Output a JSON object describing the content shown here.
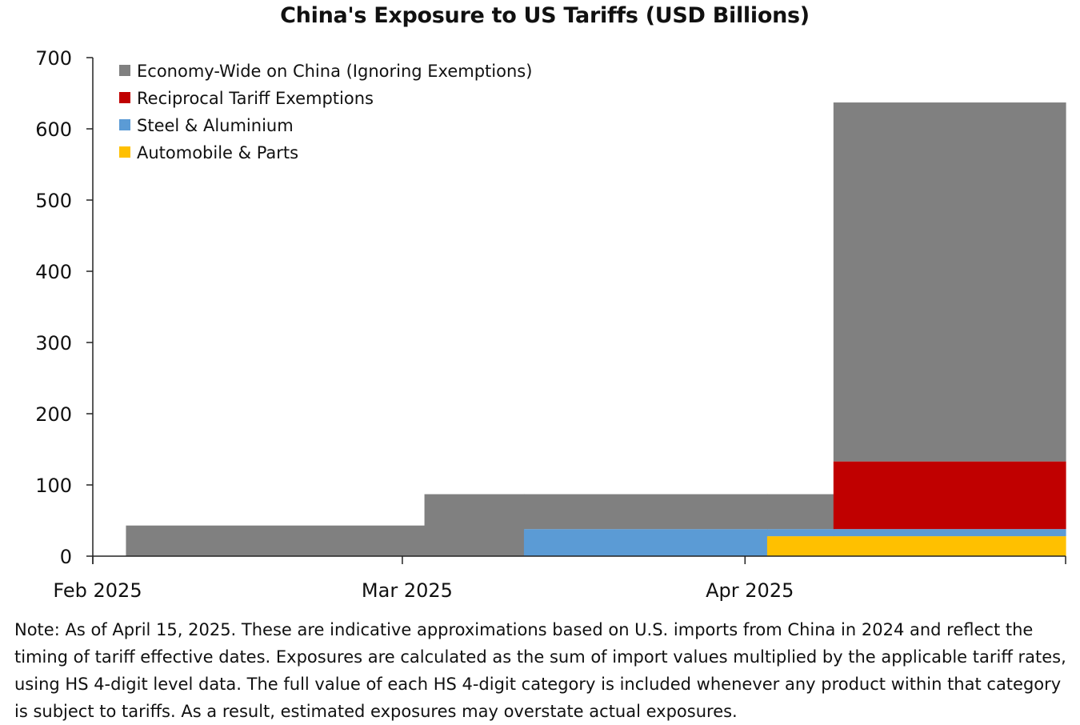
{
  "chart_data": {
    "type": "area",
    "title": "China's Exposure to US Tariffs (USD Billions)",
    "xlabel": "",
    "ylabel": "",
    "ylim": [
      0,
      700
    ],
    "yticks": [
      0,
      100,
      200,
      300,
      400,
      500,
      600,
      700
    ],
    "xlim": [
      "2025-02-01",
      "2025-04-30"
    ],
    "xticks": [
      {
        "date": "2025-02-01",
        "label": "Feb 2025"
      },
      {
        "date": "2025-03-01",
        "label": "Mar 2025"
      },
      {
        "date": "2025-04-01",
        "label": "Apr 2025"
      }
    ],
    "stacked": true,
    "grid": false,
    "legend_position": "top-left",
    "series": [
      {
        "name": "Automobile & Parts",
        "color": "#FFC000",
        "segments": [
          {
            "start": "2025-04-03",
            "end": "2025-04-30",
            "value": 28
          }
        ]
      },
      {
        "name": "Steel & Aluminium",
        "color": "#5B9BD5",
        "segments": [
          {
            "start": "2025-03-12",
            "end": "2025-04-03",
            "value": 38
          },
          {
            "start": "2025-04-03",
            "end": "2025-04-30",
            "value": 10
          }
        ]
      },
      {
        "name": "Reciprocal Tariff Exemptions",
        "color": "#C00000",
        "segments": [
          {
            "start": "2025-04-09",
            "end": "2025-04-30",
            "value": 95
          }
        ]
      },
      {
        "name": "Economy-Wide on China (Ignoring Exemptions)",
        "color": "#808080",
        "segments": [
          {
            "start": "2025-02-04",
            "end": "2025-03-03",
            "value": 43
          },
          {
            "start": "2025-03-03",
            "end": "2025-03-12",
            "value": 87
          },
          {
            "start": "2025-03-12",
            "end": "2025-04-03",
            "value": 49
          },
          {
            "start": "2025-04-03",
            "end": "2025-04-09",
            "value": 49
          },
          {
            "start": "2025-04-09",
            "end": "2025-04-30",
            "value": 504
          }
        ]
      }
    ],
    "legend_order": [
      "Economy-Wide on China (Ignoring Exemptions)",
      "Reciprocal Tariff Exemptions",
      "Steel & Aluminium",
      "Automobile & Parts"
    ]
  },
  "note": "Note: As of April 15, 2025. These are indicative approximations based on U.S. imports from China in 2024 and reflect the timing of tariff effective dates. Exposures are calculated as the sum of import values multiplied by the applicable tariff rates, using HS 4-digit level data. The full value of each HS 4-digit category is included whenever any product within that category is subject to tariffs. As a result, estimated exposures may overstate actual exposures."
}
